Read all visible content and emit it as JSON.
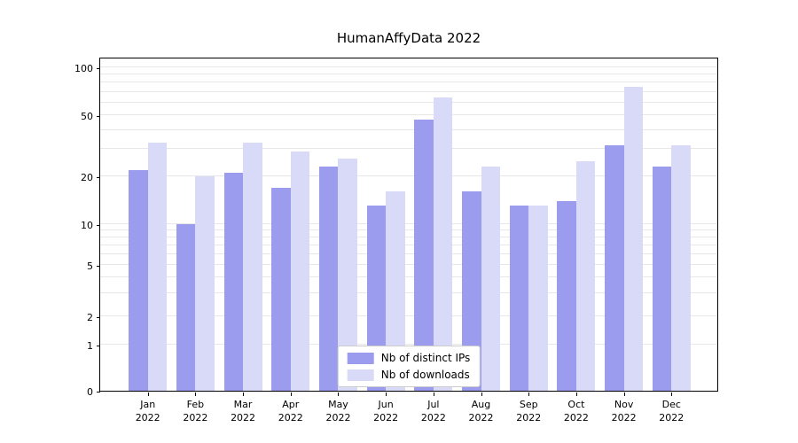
{
  "chart_data": {
    "type": "bar",
    "title": "HumanAffyData 2022",
    "categories": [
      "Jan",
      "Feb",
      "Mar",
      "Apr",
      "May",
      "Jun",
      "Jul",
      "Aug",
      "Sep",
      "Oct",
      "Nov",
      "Dec"
    ],
    "year_label": "2022",
    "series": [
      {
        "name": "Nb of distinct IPs",
        "color": "#9c9cee",
        "values": [
          22,
          10,
          21,
          17,
          23,
          13,
          47,
          16,
          13,
          14,
          32,
          23
        ]
      },
      {
        "name": "Nb of downloads",
        "color": "#d9d9f8",
        "values": [
          33,
          20,
          33,
          29,
          26,
          16,
          65,
          23,
          13,
          25,
          75,
          32
        ]
      }
    ],
    "yticks": [
      0,
      1,
      2,
      5,
      10,
      20,
      50,
      100
    ],
    "minor_gridlines": [
      3,
      4,
      6,
      7,
      8,
      9,
      30,
      40,
      60,
      70,
      80,
      90
    ],
    "scale": "symlog",
    "ylim": [
      0,
      110
    ],
    "grid": true,
    "legend_position": "lower center",
    "colors": {
      "grid": "#e7e7e7",
      "axis": "#000000",
      "background": "#ffffff"
    }
  }
}
